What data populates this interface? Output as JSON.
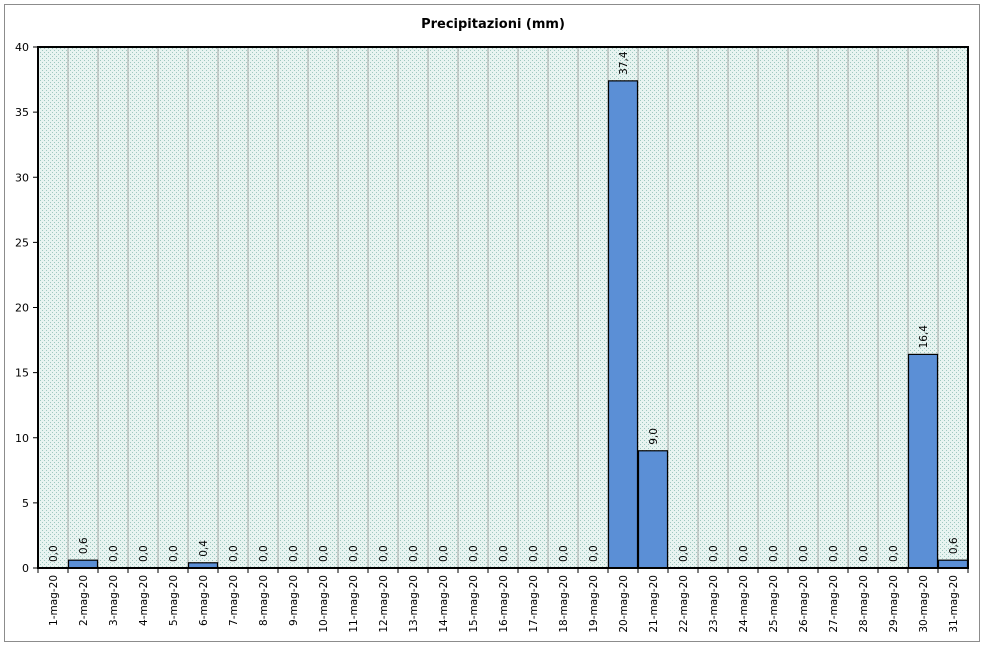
{
  "chart_data": {
    "type": "bar",
    "title": "Precipitazioni (mm)",
    "xlabel": "",
    "ylabel": "",
    "ylim": [
      0,
      40
    ],
    "yticks": [
      "0",
      "5",
      "10",
      "15",
      "20",
      "25",
      "30",
      "35",
      "40"
    ],
    "grid": true,
    "bar_color": "#5b8fd6",
    "categories": [
      "1-mag-20",
      "2-mag-20",
      "3-mag-20",
      "4-mag-20",
      "5-mag-20",
      "6-mag-20",
      "7-mag-20",
      "8-mag-20",
      "9-mag-20",
      "10-mag-20",
      "11-mag-20",
      "12-mag-20",
      "13-mag-20",
      "14-mag-20",
      "15-mag-20",
      "16-mag-20",
      "17-mag-20",
      "18-mag-20",
      "19-mag-20",
      "20-mag-20",
      "21-mag-20",
      "22-mag-20",
      "23-mag-20",
      "24-mag-20",
      "25-mag-20",
      "26-mag-20",
      "27-mag-20",
      "28-mag-20",
      "29-mag-20",
      "30-mag-20",
      "31-mag-20"
    ],
    "values": [
      0.0,
      0.6,
      0.0,
      0.0,
      0.0,
      0.4,
      0.0,
      0.0,
      0.0,
      0.0,
      0.0,
      0.0,
      0.0,
      0.0,
      0.0,
      0.0,
      0.0,
      0.0,
      0.0,
      37.4,
      9.0,
      0.0,
      0.0,
      0.0,
      0.0,
      0.0,
      0.0,
      0.0,
      0.0,
      16.4,
      0.6
    ],
    "data_labels": [
      "0,0",
      "0,6",
      "0,0",
      "0,0",
      "0,0",
      "0,4",
      "0,0",
      "0,0",
      "0,0",
      "0,0",
      "0,0",
      "0,0",
      "0,0",
      "0,0",
      "0,0",
      "0,0",
      "0,0",
      "0,0",
      "0,0",
      "37,4",
      "9,0",
      "0,0",
      "0,0",
      "0,0",
      "0,0",
      "0,0",
      "0,0",
      "0,0",
      "0,0",
      "16,4",
      "0,6"
    ]
  }
}
